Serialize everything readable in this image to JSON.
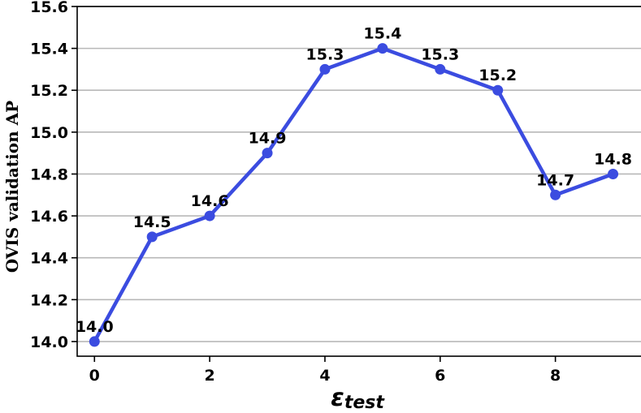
{
  "chart_data": {
    "type": "line",
    "x": [
      0,
      1,
      2,
      3,
      4,
      5,
      6,
      7,
      8,
      9
    ],
    "series": [
      {
        "values": [
          14.0,
          14.5,
          14.6,
          14.9,
          15.3,
          15.4,
          15.3,
          15.2,
          14.7,
          14.8
        ]
      }
    ],
    "data_labels": [
      "14.0",
      "14.5",
      "14.6",
      "14.9",
      "15.3",
      "15.4",
      "15.3",
      "15.2",
      "14.7",
      "14.8"
    ],
    "ylabel": "OVIS validation AP",
    "xlabel_main": "ε",
    "xlabel_sub": "test",
    "xlim": [
      -0.3,
      9.5
    ],
    "ylim": [
      13.93,
      15.6
    ],
    "xticks": [
      0,
      2,
      4,
      6,
      8
    ],
    "xtick_labels": [
      "0",
      "2",
      "4",
      "6",
      "8"
    ],
    "yticks": [
      14.0,
      14.2,
      14.4,
      14.6,
      14.8,
      15.0,
      15.2,
      15.4,
      15.6
    ],
    "ytick_labels": [
      "14.0",
      "14.2",
      "14.4",
      "14.6",
      "14.8",
      "15.0",
      "15.2",
      "15.4",
      "15.6"
    ],
    "grid": "horizontal",
    "line_color": "#3b4ce0",
    "grid_color": "#b8b8b8"
  }
}
